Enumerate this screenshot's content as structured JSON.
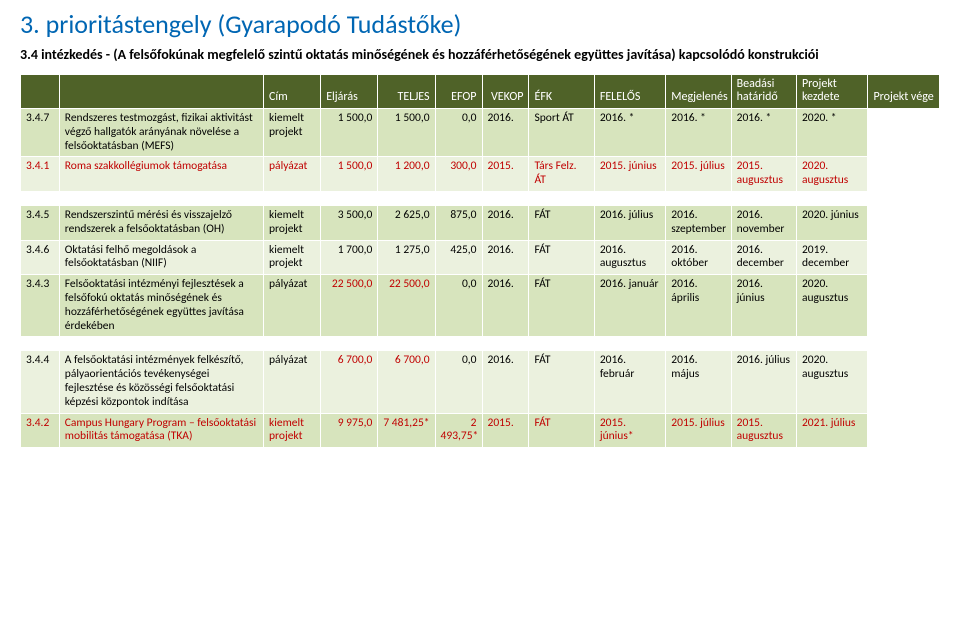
{
  "title": "3. prioritástengely (Gyarapodó Tudástőke)",
  "subtitle": "3.4 intézkedés  - (A felsőfokúnak megfelelő szintű oktatás minőségének és hozzáférhetőségének együttes javítása) kapcsolódó konstrukciói",
  "colors": {
    "header_bg": "#4f6228",
    "header_fg": "#ffffff",
    "band_dark": "#d7e4bd",
    "band_light": "#ebf1de",
    "title_color": "#0066b3",
    "red": "#c00000"
  },
  "columns": [
    "",
    "Cím",
    "Eljárás",
    "TELJES",
    "EFOP",
    "VEKOP",
    "ÉFK",
    "FELELŐS",
    "Megjelenés",
    "Beadási határidő",
    "Projekt kezdete",
    "Projekt vége"
  ],
  "rows": [
    {
      "band": "dark",
      "id": "3.4.7",
      "cim": "Rendszeres testmozgást, fizikai aktivitást végző hallgatók arányának növelése a felsőoktatásban (MEFS)",
      "elj": "kiemelt projekt",
      "teljes": "1 500,0",
      "efop": "1 500,0",
      "vekop": "0,0",
      "efk": "2016.",
      "felelos": "Sport ÁT",
      "megj": "2016. *",
      "bead": "2016. *",
      "kezd": "2016. *",
      "vege": "2020. *"
    },
    {
      "band": "light",
      "id": "3.4.1",
      "cim": "Roma szakkollégiumok támogatása",
      "elj": "pályázat",
      "teljes": "1 500,0",
      "efop": "1 200,0",
      "vekop": "300,0",
      "efk": "2015.",
      "felelos": "Társ Felz. ÁT",
      "megj": "2015. június",
      "bead": "2015. július",
      "kezd": "2015. augusztus",
      "vege": "2020. augusztus",
      "red": true
    },
    {
      "spacer": true
    },
    {
      "band": "dark",
      "id": "3.4.5",
      "cim": "Rendszerszintű mérési és visszajelző rendszerek a felsőoktatásban (OH)",
      "elj": "kiemelt projekt",
      "teljes": "3 500,0",
      "efop": "2 625,0",
      "vekop": "875,0",
      "efk": "2016.",
      "felelos": "FÁT",
      "megj": "2016. július",
      "bead": "2016. szeptember",
      "kezd": "2016. november",
      "vege": "2020. június"
    },
    {
      "band": "light",
      "id": "3.4.6",
      "cim": "Oktatási felhő megoldások a felsőoktatásban (NIIF)",
      "elj": "kiemelt projekt",
      "teljes": "1 700,0",
      "efop": "1 275,0",
      "vekop": "425,0",
      "efk": "2016.",
      "felelos": "FÁT",
      "megj": "2016. augusztus",
      "bead": "2016. október",
      "kezd": "2016. december",
      "vege": "2019. december"
    },
    {
      "band": "dark",
      "id": "3.4.3",
      "cim": "Felsőoktatási intézményi fejlesztések a felsőfokú oktatás minőségének és hozzáférhetőségének együttes javítása érdekében",
      "elj": "pályázat",
      "teljes": "22 500,0",
      "efop": "22 500,0",
      "vekop": "0,0",
      "efk": "2016.",
      "felelos": "FÁT",
      "megj": "2016. január",
      "bead": "2016. április",
      "kezd": "2016. június",
      "vege": "2020. augusztus",
      "teljes_red": true,
      "efop_red": true
    },
    {
      "spacer": true
    },
    {
      "band": "light",
      "id": "3.4.4",
      "cim": "A felsőoktatási intézmények felkészítő, pályaorientációs tevékenységei fejlesztése és közösségi felsőoktatási képzési központok indítása",
      "elj": "pályázat",
      "teljes": "6 700,0",
      "efop": "6 700,0",
      "vekop": "0,0",
      "efk": "2016.",
      "felelos": "FÁT",
      "megj": "2016. február",
      "bead": "2016. május",
      "kezd": "2016. július",
      "vege": "2020. augusztus",
      "teljes_red": true,
      "efop_red": true
    },
    {
      "band": "dark",
      "id": "3.4.2",
      "cim": "Campus Hungary Program – felsőoktatási mobilitás támogatása (TKA)",
      "elj": "kiemelt projekt",
      "teljes": "9 975,0",
      "efop": "7 481,25*",
      "vekop": "2 493,75*",
      "efk": "2015.",
      "felelos": "FÁT",
      "megj": "2015. június*",
      "bead": "2015. július",
      "kezd": "2015. augusztus",
      "vege": "2021. július",
      "red": true,
      "efop_red": true,
      "vekop_red": true,
      "megj_red": true
    }
  ]
}
